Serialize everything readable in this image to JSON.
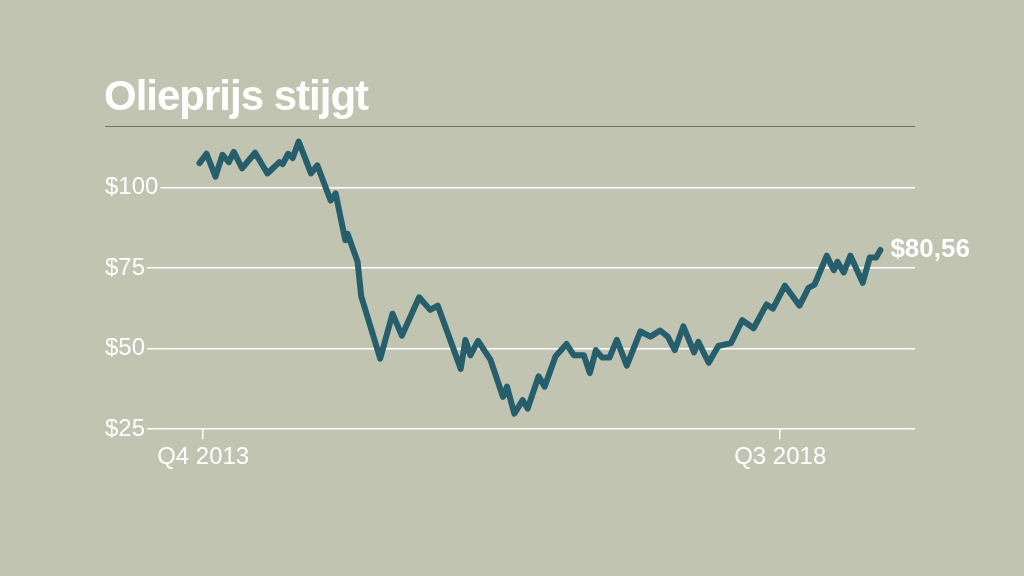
{
  "chart_data": {
    "type": "line",
    "title": "Olieprijs stijgt",
    "x": [
      "2013-09-20",
      "2013-10-11",
      "2013-11-07",
      "2013-11-28",
      "2013-12-17",
      "2014-01-01",
      "2014-01-26",
      "2014-03-06",
      "2014-04-12",
      "2014-05-18",
      "2014-05-28",
      "2014-06-13",
      "2014-06-27",
      "2014-07-15",
      "2014-08-21",
      "2014-09-09",
      "2014-10-19",
      "2014-11-03",
      "2014-12-02",
      "2014-12-09",
      "2015-01-08",
      "2015-01-19",
      "2015-03-17",
      "2015-04-23",
      "2015-05-21",
      "2015-07-12",
      "2015-08-14",
      "2015-09-06",
      "2015-11-14",
      "2015-11-28",
      "2015-12-13",
      "2016-01-05",
      "2016-02-11",
      "2016-03-20",
      "2016-04-01",
      "2016-04-23",
      "2016-05-18",
      "2016-06-02",
      "2016-07-05",
      "2016-07-23",
      "2016-08-25",
      "2016-09-27",
      "2016-10-19",
      "2016-11-18",
      "2016-12-06",
      "2016-12-24",
      "2017-01-12",
      "2017-02-03",
      "2017-02-25",
      "2017-03-27",
      "2017-05-07",
      "2017-06-06",
      "2017-07-05",
      "2017-07-28",
      "2017-08-18",
      "2017-09-13",
      "2017-10-15",
      "2017-10-28",
      "2017-11-28",
      "2017-12-27",
      "2018-02-03",
      "2018-03-09",
      "2018-04-12",
      "2018-05-21",
      "2018-06-09",
      "2018-07-15",
      "2018-08-28",
      "2018-09-24",
      "2018-10-12",
      "2018-11-18",
      "2018-12-09",
      "2018-12-20",
      "2019-01-08",
      "2019-01-28",
      "2019-03-06",
      "2019-03-27",
      "2019-04-15",
      "2019-04-28"
    ],
    "series": [
      {
        "color": "#265f6b",
        "values": [
          107.5,
          110.4,
          103.3,
          110.1,
          107.8,
          111.0,
          105.9,
          110.7,
          104.3,
          107.8,
          107.2,
          110.4,
          109.1,
          114.2,
          104.3,
          106.8,
          95.9,
          98.1,
          83.6,
          85.6,
          76.9,
          66.2,
          46.9,
          60.8,
          54.0,
          65.9,
          62.0,
          63.3,
          43.7,
          52.7,
          47.9,
          52.4,
          46.6,
          35.0,
          38.2,
          29.8,
          34.0,
          31.4,
          41.4,
          38.2,
          47.6,
          51.4,
          47.9,
          47.9,
          42.4,
          49.5,
          47.2,
          47.2,
          52.7,
          44.7,
          55.3,
          53.7,
          55.6,
          53.7,
          49.5,
          56.9,
          48.8,
          52.1,
          45.6,
          50.8,
          51.7,
          58.8,
          56.3,
          63.7,
          62.4,
          69.5,
          63.3,
          68.8,
          69.8,
          78.8,
          74.3,
          76.9,
          73.6,
          78.8,
          70.4,
          78.2,
          78.2,
          80.56
        ]
      }
    ],
    "xlim": [
      "2012-12-10",
      "2019-08-10"
    ],
    "xticks": [
      {
        "value": "2013-10-01",
        "label": "Q4 2013"
      },
      {
        "value": "2018-07-01",
        "label": "Q3 2018"
      }
    ],
    "ylim": [
      25,
      118.7
    ],
    "yticks": [
      {
        "value": 25,
        "label": "$25"
      },
      {
        "value": 50,
        "label": "$50"
      },
      {
        "value": 75,
        "label": "$75"
      },
      {
        "value": 100,
        "label": "$100"
      }
    ],
    "grid": "y",
    "marker": "none",
    "line_style": "solid",
    "annotations": [
      {
        "text": "$80,56",
        "x": "2019-04-28",
        "y": 80.56
      }
    ]
  }
}
